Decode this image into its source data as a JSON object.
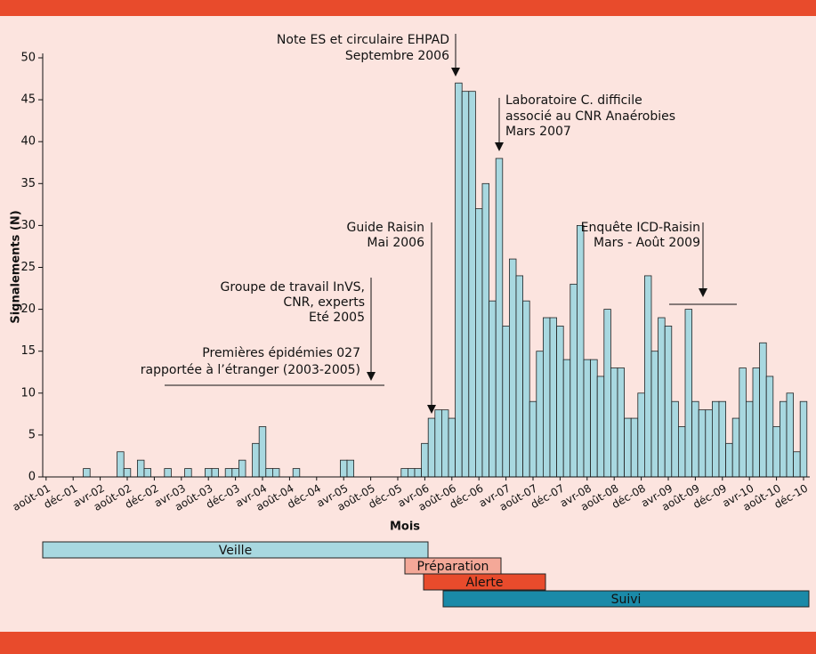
{
  "chart_data": {
    "type": "bar",
    "ylabel": "Signalements (N)",
    "xlabel": "Mois",
    "color": "#a8d8e0",
    "ylim": [
      0,
      50
    ],
    "yticks": [
      0,
      5,
      10,
      15,
      20,
      25,
      30,
      35,
      40,
      45,
      50
    ],
    "categories": [
      "août-01",
      null,
      null,
      null,
      "déc-01",
      null,
      null,
      null,
      "avr-02",
      null,
      null,
      null,
      "août-02",
      null,
      null,
      null,
      "déc-02",
      null,
      null,
      null,
      "avr-03",
      null,
      null,
      null,
      "août-03",
      null,
      null,
      null,
      "déc-03",
      null,
      null,
      null,
      "avr-04",
      null,
      null,
      null,
      "août-04",
      null,
      null,
      null,
      "déc-04",
      null,
      null,
      null,
      "avr-05",
      null,
      null,
      null,
      "août-05",
      null,
      null,
      null,
      "déc-05",
      null,
      null,
      null,
      "avr-06",
      null,
      null,
      null,
      "août-06",
      null,
      null,
      null,
      "déc-06",
      null,
      null,
      null,
      "avr-07",
      null,
      null,
      null,
      "août-07",
      null,
      null,
      null,
      "déc-07",
      null,
      null,
      null,
      "avr-08",
      null,
      null,
      null,
      "août-08",
      null,
      null,
      null,
      "déc-08",
      null,
      null,
      null,
      "avr-09",
      null,
      null,
      null,
      "août-09",
      null,
      null,
      null,
      "déc-09",
      null,
      null,
      null,
      "avr-10",
      null,
      null,
      null,
      "août-10",
      null,
      null,
      null,
      "déc-10"
    ],
    "values": [
      0,
      0,
      0,
      0,
      0,
      0,
      1,
      0,
      0,
      0,
      0,
      3,
      1,
      0,
      2,
      1,
      0,
      0,
      1,
      0,
      0,
      1,
      0,
      0,
      1,
      1,
      0,
      1,
      1,
      2,
      0,
      4,
      6,
      1,
      1,
      0,
      0,
      1,
      0,
      0,
      0,
      0,
      0,
      0,
      2,
      2,
      0,
      0,
      0,
      0,
      0,
      0,
      0,
      1,
      1,
      1,
      4,
      7,
      8,
      8,
      7,
      47,
      46,
      46,
      32,
      35,
      21,
      38,
      18,
      26,
      24,
      21,
      9,
      15,
      19,
      19,
      18,
      14,
      23,
      30,
      14,
      14,
      12,
      20,
      13,
      13,
      7,
      7,
      10,
      24,
      15,
      19,
      18,
      9,
      6,
      20,
      9,
      8,
      8,
      9,
      9,
      4,
      7,
      13,
      9,
      13,
      16,
      12,
      6,
      9,
      10,
      3,
      9
    ],
    "annotations": [
      [
        "Note ES et circulaire EHPAD",
        "Septembre 2006"
      ],
      [
        "Laboratoire C. difficile",
        "associé au CNR Anaérobies",
        "Mars 2007"
      ],
      [
        "Guide Raisin",
        "Mai 2006"
      ],
      [
        "Enquête ICD-Raisin",
        "Mars - Août 2009"
      ],
      [
        "Groupe de travail InVS,",
        "CNR, experts",
        "Eté 2005"
      ],
      [
        "Premières épidémies 027",
        "rapportée à l’étranger (2003-2005)"
      ]
    ],
    "phases": [
      {
        "name": "Veille",
        "color": "#a8d8e0"
      },
      {
        "name": "Préparation",
        "color": "#f4a898"
      },
      {
        "name": "Alerte",
        "color": "#e84b2c"
      },
      {
        "name": "Suivi",
        "color": "#1a8aa8"
      }
    ]
  }
}
